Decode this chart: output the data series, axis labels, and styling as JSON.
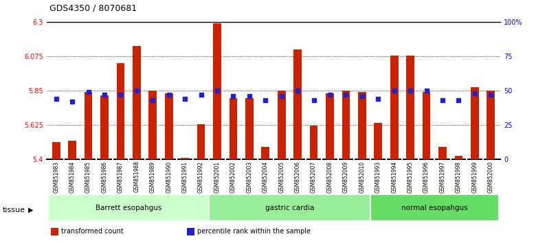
{
  "title": "GDS4350 / 8070681",
  "samples": [
    "GSM851983",
    "GSM851984",
    "GSM851985",
    "GSM851986",
    "GSM851987",
    "GSM851988",
    "GSM851989",
    "GSM851990",
    "GSM851991",
    "GSM851992",
    "GSM852001",
    "GSM852002",
    "GSM852003",
    "GSM852004",
    "GSM852005",
    "GSM852006",
    "GSM852007",
    "GSM852008",
    "GSM852009",
    "GSM852010",
    "GSM851993",
    "GSM851994",
    "GSM851995",
    "GSM851996",
    "GSM851997",
    "GSM851998",
    "GSM851999",
    "GSM852000"
  ],
  "red_values": [
    5.51,
    5.52,
    5.84,
    5.82,
    6.03,
    6.14,
    5.85,
    5.83,
    5.41,
    5.63,
    6.29,
    5.8,
    5.8,
    5.48,
    5.85,
    6.12,
    5.62,
    5.83,
    5.85,
    5.84,
    5.64,
    6.08,
    6.08,
    5.84,
    5.48,
    5.42,
    5.87,
    5.85
  ],
  "blue_values": [
    44,
    42,
    49,
    47,
    47,
    50,
    43,
    47,
    44,
    47,
    50,
    46,
    46,
    43,
    46,
    50,
    43,
    47,
    47,
    46,
    44,
    50,
    50,
    50,
    43,
    43,
    48,
    47
  ],
  "groups": [
    {
      "label": "Barrett esopahgus",
      "start": 0,
      "end": 9,
      "color": "#ccffcc"
    },
    {
      "label": "gastric cardia",
      "start": 10,
      "end": 19,
      "color": "#99ee99"
    },
    {
      "label": "normal esopahgus",
      "start": 20,
      "end": 27,
      "color": "#66dd66"
    }
  ],
  "ylim_left": [
    5.4,
    6.3
  ],
  "ylim_right": [
    0,
    100
  ],
  "yticks_left": [
    5.4,
    5.625,
    5.85,
    6.075,
    6.3
  ],
  "ytick_labels_left": [
    "5.4",
    "5.625",
    "5.85",
    "6.075",
    "6.3"
  ],
  "yticks_right": [
    0,
    25,
    50,
    75,
    100
  ],
  "ytick_labels_right": [
    "0",
    "25",
    "50",
    "75",
    "100%"
  ],
  "bar_color": "#cc2200",
  "dot_color": "#2222cc",
  "baseline": 5.4,
  "grid_lines": [
    5.625,
    5.85,
    6.075
  ],
  "tissue_label": "tissue",
  "legend": [
    {
      "color": "#cc2200",
      "label": "transformed count"
    },
    {
      "color": "#2222cc",
      "label": "percentile rank within the sample"
    }
  ]
}
